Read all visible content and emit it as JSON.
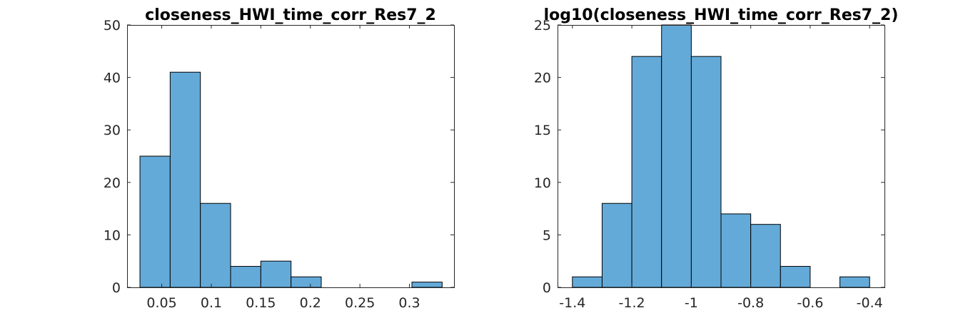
{
  "chart_data": [
    {
      "type": "bar",
      "title": "closeness_HWI_time_corr_Res7_2",
      "xlabel": "",
      "ylabel": "",
      "bin_edges": [
        0.028,
        0.0585,
        0.089,
        0.1195,
        0.15,
        0.1805,
        0.211,
        0.2415,
        0.272,
        0.3025,
        0.333
      ],
      "values": [
        25,
        41,
        16,
        4,
        5,
        2,
        0,
        0,
        0,
        1
      ],
      "xlim": [
        0.015,
        0.345
      ],
      "ylim": [
        0,
        50
      ],
      "xticks": [
        0.05,
        0.1,
        0.15,
        0.2,
        0.25,
        0.3
      ],
      "xtick_labels": [
        "0.05",
        "0.1",
        "0.15",
        "0.2",
        "0.25",
        "0.3"
      ],
      "yticks": [
        0,
        10,
        20,
        30,
        40,
        50
      ],
      "ytick_labels": [
        "0",
        "10",
        "20",
        "30",
        "40",
        "50"
      ],
      "bar_color": "#64aad8",
      "grid": false
    },
    {
      "type": "bar",
      "title": "log10(closeness_HWI_time_corr_Res7_2)",
      "xlabel": "",
      "ylabel": "",
      "bin_edges": [
        -1.4,
        -1.3,
        -1.2,
        -1.1,
        -1.0,
        -0.9,
        -0.8,
        -0.7,
        -0.6,
        -0.5,
        -0.4
      ],
      "values": [
        1,
        8,
        22,
        25,
        22,
        7,
        6,
        2,
        0,
        1
      ],
      "xlim": [
        -1.45,
        -0.35
      ],
      "ylim": [
        0,
        25
      ],
      "xticks": [
        -1.4,
        -1.2,
        -1.0,
        -0.8,
        -0.6,
        -0.4
      ],
      "xtick_labels": [
        "-1.4",
        "-1.2",
        "-1",
        "-0.8",
        "-0.6",
        "-0.4"
      ],
      "yticks": [
        0,
        5,
        10,
        15,
        20,
        25
      ],
      "ytick_labels": [
        "0",
        "5",
        "10",
        "15",
        "20",
        "25"
      ],
      "bar_color": "#64aad8",
      "grid": false
    }
  ]
}
